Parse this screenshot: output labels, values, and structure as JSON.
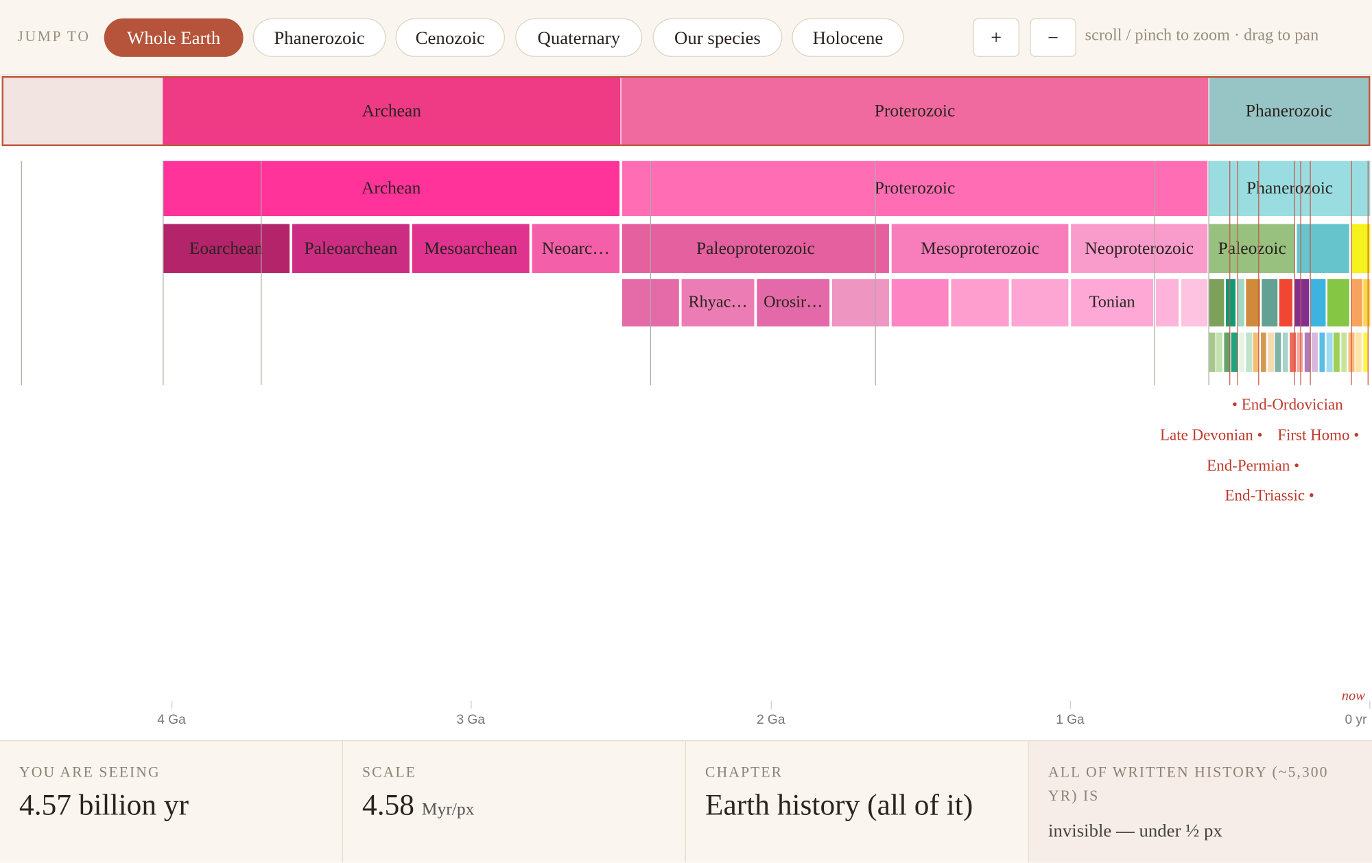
{
  "header": {
    "jump_to": "JUMP TO",
    "buttons": [
      "Whole Earth",
      "Phanerozoic",
      "Cenozoic",
      "Quaternary",
      "Our species",
      "Holocene"
    ],
    "zoom_in": "+",
    "zoom_out": "−",
    "hint": "scroll / pinch to zoom · drag to pan"
  },
  "overview": {
    "segments": [
      "Archean",
      "Proterozoic",
      "Phanerozoic"
    ]
  },
  "timeline": {
    "eons": [
      "Archean",
      "Proterozoic",
      "Phanerozoic"
    ],
    "eras": [
      "Eoarchean",
      "Paleoarchean",
      "Mesoarchean",
      "Neoarc…",
      "Paleoproterozoic",
      "Mesoproterozoic",
      "Neoproterozoic",
      "Paleozoic"
    ],
    "periods": [
      "Rhyac…",
      "Orosir…",
      "Tonian"
    ],
    "events": [
      "End-Ordovician",
      "Late Devonian",
      "First Homo",
      "End-Permian",
      "End-Triassic"
    ],
    "now": "now",
    "ticks": [
      "4 Ga",
      "3 Ga",
      "2 Ga",
      "1 Ga",
      "0 yr"
    ]
  },
  "stats": [
    {
      "label": "YOU ARE SEEING",
      "value": "4.57 billion yr"
    },
    {
      "label": "SCALE",
      "value": "4.58",
      "unit": "Myr/px"
    },
    {
      "label": "CHAPTER",
      "value": "Earth history (all of it)"
    },
    {
      "label": "ALL OF WRITTEN HISTORY (~5,300 YR) IS",
      "value": "invisible — under ½ px"
    }
  ]
}
